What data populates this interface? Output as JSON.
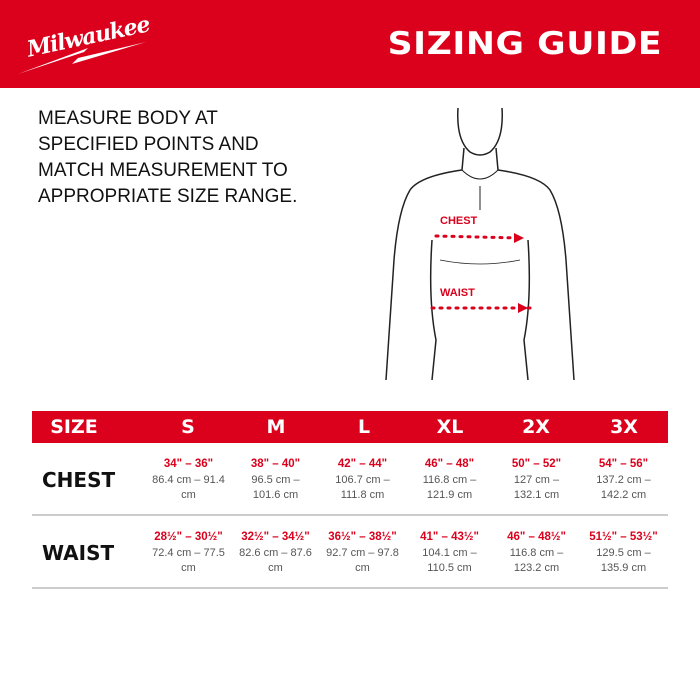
{
  "header": {
    "logo": "Milwaukee",
    "title": "SIZING GUIDE"
  },
  "instructions": "MEASURE BODY AT SPECIFIED POINTS AND MATCH MEASUREMENT TO APPROPRIATE SIZE RANGE.",
  "diagram": {
    "chest_label": "CHEST",
    "waist_label": "WAIST"
  },
  "colors": {
    "brand_red": "#db011c"
  },
  "table": {
    "size_header": "SIZE",
    "sizes": [
      "S",
      "M",
      "L",
      "XL",
      "2X",
      "3X"
    ],
    "rows": [
      {
        "label": "CHEST",
        "cells": [
          {
            "in": "34\" – 36\"",
            "cm": "86.4 cm – 91.4 cm"
          },
          {
            "in": "38\" – 40\"",
            "cm": "96.5 cm – 101.6 cm"
          },
          {
            "in": "42\" – 44\"",
            "cm": "106.7 cm – 111.8 cm"
          },
          {
            "in": "46\" – 48\"",
            "cm": "116.8 cm – 121.9 cm"
          },
          {
            "in": "50\" – 52\"",
            "cm": "127 cm – 132.1 cm"
          },
          {
            "in": "54\" – 56\"",
            "cm": "137.2 cm – 142.2 cm"
          }
        ]
      },
      {
        "label": "WAIST",
        "cells": [
          {
            "in": "28½\" – 30½\"",
            "cm": "72.4 cm – 77.5 cm"
          },
          {
            "in": "32½\" – 34½\"",
            "cm": "82.6 cm – 87.6 cm"
          },
          {
            "in": "36½\" – 38½\"",
            "cm": "92.7 cm – 97.8 cm"
          },
          {
            "in": "41\" – 43½\"",
            "cm": "104.1 cm – 110.5 cm"
          },
          {
            "in": "46\" – 48½\"",
            "cm": "116.8 cm – 123.2 cm"
          },
          {
            "in": "51½\" – 53½\"",
            "cm": "129.5 cm – 135.9 cm"
          }
        ]
      }
    ]
  }
}
